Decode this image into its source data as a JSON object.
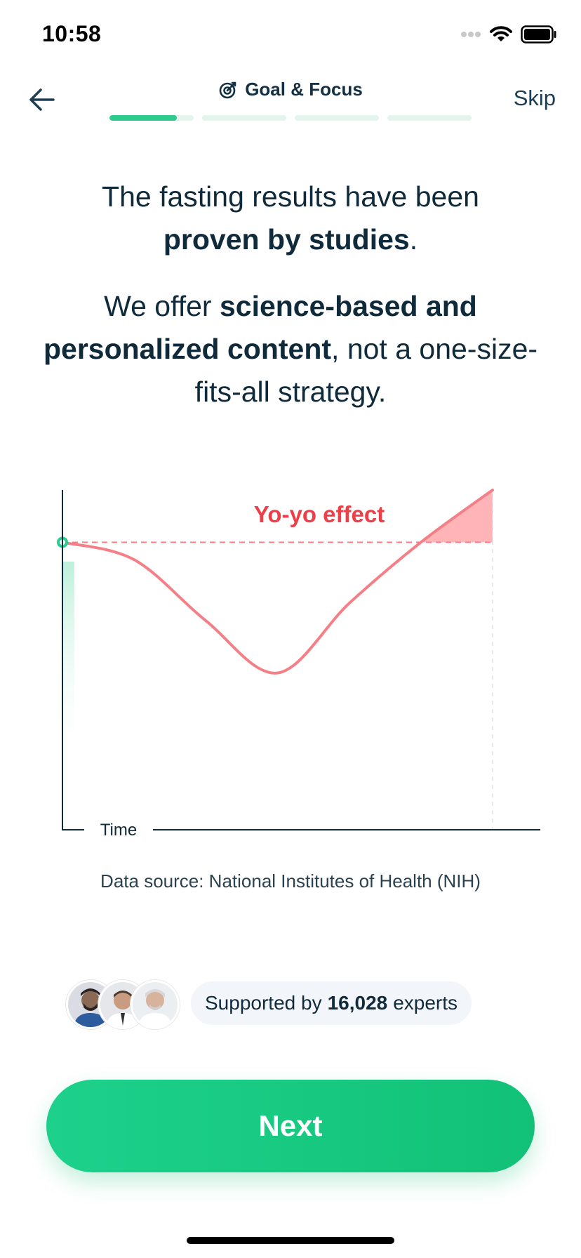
{
  "status_bar": {
    "time": "10:58"
  },
  "header": {
    "title": "Goal & Focus",
    "skip_label": "Skip",
    "progress": {
      "segments": 4,
      "current_fill": 0.8
    }
  },
  "headline": {
    "line1_pre": "The fasting results have been",
    "line1_bold": "proven by studies",
    "line1_end": ".",
    "line2_pre": "We offer ",
    "line2_bold": "science-based and personalized content",
    "line2_post": ", not a one-size-fits-all strategy."
  },
  "chart_data": {
    "type": "line",
    "title": "Yo-yo effect",
    "xlabel": "Time",
    "ylabel": "",
    "series": [
      {
        "values": [
          0.5,
          0.3,
          -0.4,
          -1.0,
          -0.2,
          0.5,
          1.1
        ]
      }
    ],
    "baseline": 0.5,
    "highlight_above_baseline": true,
    "colors": {
      "line": "#f47f86",
      "fill": "#ffb5b8",
      "start": "#2dcb8e",
      "baseline": "#f47f86",
      "title": "#ee3e47"
    }
  },
  "source": "Data source: National Institutes of Health (NIH)",
  "experts": {
    "pre": "Supported by",
    "count": "16,028",
    "post": "experts",
    "avatars": [
      "expert-1",
      "expert-2",
      "expert-3"
    ]
  },
  "cta": {
    "label": "Next",
    "color": "#12c177"
  }
}
